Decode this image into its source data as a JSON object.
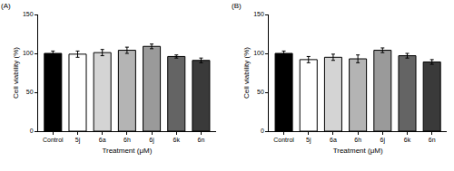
{
  "chart_data": [
    {
      "type": "bar",
      "title": "(A)",
      "categories": [
        "Control",
        "5j",
        "6a",
        "6h",
        "6j",
        "6k",
        "6n"
      ],
      "values": [
        100,
        99,
        101,
        104,
        109,
        96,
        91
      ],
      "errors": [
        3,
        4,
        4,
        4,
        3,
        2,
        3
      ],
      "colors": [
        "#000000",
        "#ffffff",
        "#d4d4d4",
        "#b4b4b4",
        "#9a9a9a",
        "#646464",
        "#3a3a3a"
      ],
      "x_label": "Treatment (μM)",
      "y_label": "Cell viability (%)",
      "ylim": [
        0,
        150
      ],
      "yticks": [
        0,
        50,
        100,
        150
      ],
      "grid": false
    },
    {
      "type": "bar",
      "title": "(B)",
      "categories": [
        "Control",
        "5j",
        "6a",
        "6h",
        "6j",
        "6k",
        "6n"
      ],
      "values": [
        100,
        92,
        95,
        93,
        104,
        97,
        89
      ],
      "errors": [
        3,
        4,
        4,
        5,
        3,
        3,
        3
      ],
      "colors": [
        "#000000",
        "#ffffff",
        "#d4d4d4",
        "#b4b4b4",
        "#9a9a9a",
        "#646464",
        "#3a3a3a"
      ],
      "x_label": "Treatment (μM)",
      "y_label": "Cell viability (%)",
      "ylim": [
        0,
        150
      ],
      "yticks": [
        0,
        50,
        100,
        150
      ],
      "grid": false
    }
  ]
}
